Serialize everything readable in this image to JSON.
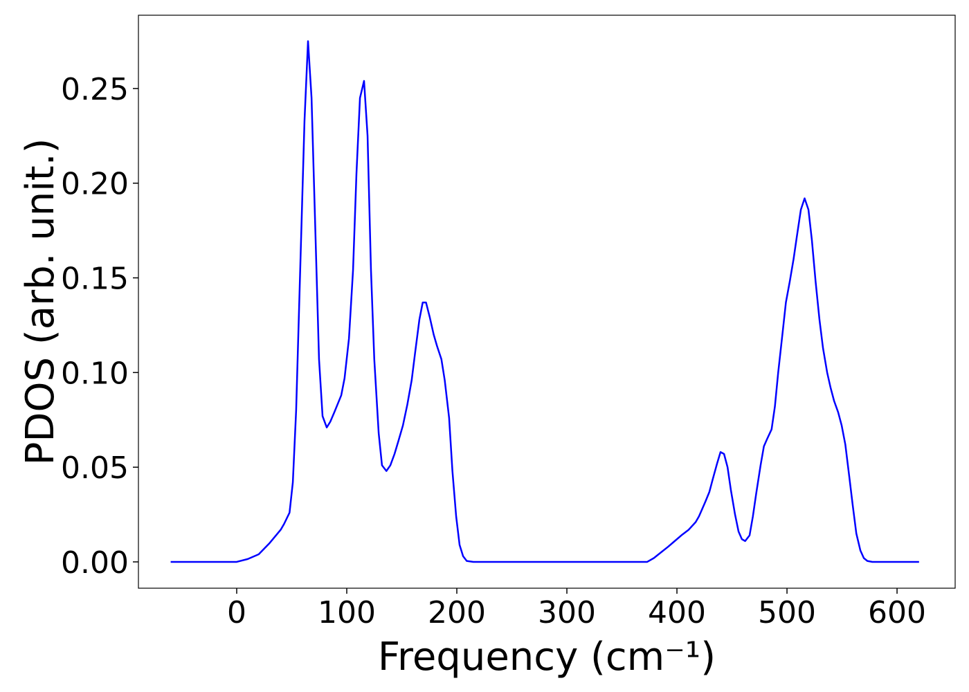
{
  "chart_data": {
    "type": "line",
    "x_label": "Frequency (cm⁻¹)",
    "y_label": "PDOS (arb. unit.)",
    "series": [
      {
        "color": "#0000ff",
        "x": [
          -60,
          -40,
          -20,
          0,
          10,
          20,
          30,
          40,
          43,
          48,
          51,
          54,
          61.6,
          64.8,
          68,
          74.8,
          78,
          81.8,
          85,
          88.7,
          95,
          98,
          102,
          105.7,
          108.8,
          112,
          115.7,
          118.9,
          122,
          125,
          129,
          132,
          136,
          139.6,
          143.4,
          147,
          151,
          155,
          159,
          162,
          166,
          169,
          172,
          175.5,
          179,
          182,
          186,
          189,
          193,
          196,
          199.4,
          202.5,
          205.7,
          209,
          215,
          300,
          373,
          379,
          385.5,
          392,
          398,
          404,
          410.7,
          417,
          420,
          423,
          426,
          429.5,
          432.7,
          436.5,
          439.6,
          442.8,
          446,
          449,
          452.8,
          456,
          459,
          462,
          466,
          469,
          472,
          476,
          479,
          482,
          486,
          489,
          492,
          496,
          499,
          502.5,
          506,
          509,
          512.6,
          516,
          519.5,
          522.6,
          526,
          529.5,
          532.7,
          536.5,
          539.6,
          542.8,
          546.5,
          549.7,
          553,
          556.6,
          559.7,
          563,
          566.7,
          569.8,
          573,
          577.5,
          620
        ],
        "values": [
          0,
          0,
          0,
          0,
          0.0015,
          0.004,
          0.01,
          0.017,
          0.02,
          0.026,
          0.042,
          0.08,
          0.233,
          0.275,
          0.245,
          0.107,
          0.077,
          0.071,
          0.074,
          0.079,
          0.088,
          0.097,
          0.118,
          0.154,
          0.205,
          0.245,
          0.254,
          0.225,
          0.154,
          0.107,
          0.068,
          0.051,
          0.048,
          0.051,
          0.057,
          0.064,
          0.072,
          0.083,
          0.096,
          0.11,
          0.128,
          0.137,
          0.137,
          0.129,
          0.12,
          0.114,
          0.107,
          0.096,
          0.076,
          0.048,
          0.024,
          0.009,
          0.003,
          0.0005,
          0,
          0,
          0,
          0.002,
          0.005,
          0.008,
          0.011,
          0.014,
          0.017,
          0.021,
          0.024,
          0.028,
          0.032,
          0.037,
          0.044,
          0.052,
          0.058,
          0.057,
          0.05,
          0.038,
          0.025,
          0.016,
          0.012,
          0.011,
          0.014,
          0.024,
          0.036,
          0.051,
          0.061,
          0.065,
          0.07,
          0.082,
          0.1,
          0.121,
          0.137,
          0.148,
          0.16,
          0.172,
          0.186,
          0.192,
          0.186,
          0.17,
          0.148,
          0.128,
          0.113,
          0.1,
          0.092,
          0.085,
          0.079,
          0.072,
          0.062,
          0.045,
          0.03,
          0.015,
          0.006,
          0.002,
          0.0005,
          0,
          0
        ]
      }
    ],
    "xlim": [
      -89.3,
      652.8
    ],
    "ylim": [
      -0.0139,
      0.2887
    ],
    "xticks": [
      0,
      100,
      200,
      300,
      400,
      500,
      600
    ],
    "yticks": [
      {
        "value": 0,
        "label": "0.00"
      },
      0.05,
      {
        "value": 0.1,
        "label": "0.10"
      },
      0.15,
      {
        "value": 0.2,
        "label": "0.20"
      },
      0.25
    ],
    "grid": false
  }
}
